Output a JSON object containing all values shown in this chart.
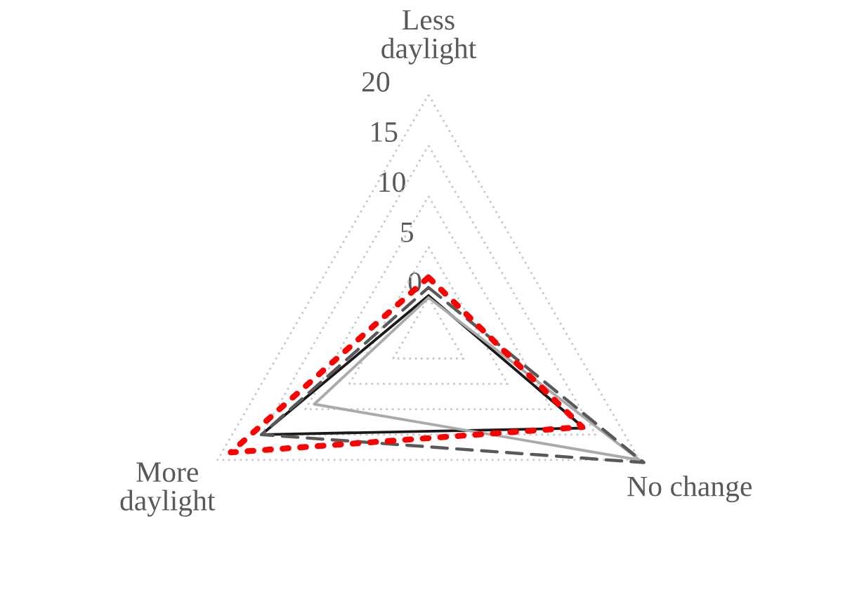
{
  "chart_data": {
    "type": "radar",
    "categories": [
      "Less\ndaylight",
      "No change",
      "More\ndaylight"
    ],
    "ylim": [
      -4,
      21
    ],
    "yticks": [
      0,
      5,
      10,
      15,
      20
    ],
    "grid": true,
    "series": [
      {
        "color": "#1a1a1a",
        "line_style": "solid",
        "values": [
          0.2,
          13.7,
          15
        ]
      },
      {
        "color": "#aaaaaa",
        "line_style": "solid",
        "values": [
          0,
          20,
          9
        ]
      },
      {
        "color": "#595959",
        "line_style": "dashed",
        "values": [
          1,
          20.5,
          15
        ]
      },
      {
        "color": "#ff0000",
        "line_style": "dotted",
        "values": [
          2,
          13.5,
          18.5
        ]
      }
    ]
  }
}
